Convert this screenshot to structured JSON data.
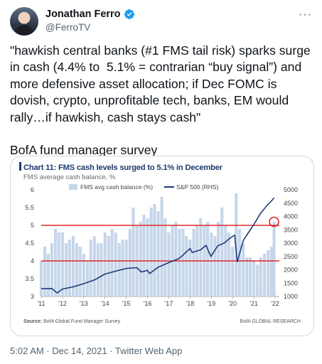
{
  "tweet": {
    "author_name": "Jonathan Ferro",
    "handle": "@FerroTV",
    "more_label": "···",
    "text": "\"hawkish central banks (#1 FMS tail risk) sparks surge in cash (4.4% to  5.1% = contrarian “buy signal”) and more defensive asset allocation; if Dec FOMC is dovish, crypto, unprofitable tech, banks, EM would rally…if hawkish, cash stays cash\"\n\nBofA fund manager survey",
    "timestamp": "5:02 AM · Dec 14, 2021 · Twitter Web App"
  },
  "colors": {
    "verified": "#1d9bf0",
    "bar": "#c6d6ea",
    "line": "#1f3b7a",
    "ref_line": "#e0262b"
  },
  "chart_card": {
    "title": "Chart 11: FMS cash levels surged to 5.1% in December",
    "subtitle": "FMS average cash balance, %",
    "legend_bar": "FMS avg cash balance (%)",
    "legend_line": "S&P 500 (RHS)",
    "source_label": "Source:",
    "source_text": "BofA Global Fund Manager Survey",
    "credit": "BofA GLOBAL RESEARCH"
  },
  "chart_data": {
    "type": "bar",
    "title": "Chart 11: FMS cash levels surged to 5.1% in December",
    "subtitle": "FMS average cash balance, %",
    "x_ticks": [
      "'11",
      "'12",
      "'13",
      "'14",
      "'15",
      "'16",
      "'17",
      "'18",
      "'19",
      "'20",
      "'21",
      "'22"
    ],
    "x_range": [
      2011,
      2022.2
    ],
    "ylim_left": [
      3,
      6
    ],
    "yticks_left": [
      "3",
      "3.5",
      "4",
      "4.5",
      "5",
      "5.5",
      "6"
    ],
    "ylim_right": [
      1000,
      5000
    ],
    "yticks_right": [
      "1000",
      "1500",
      "2000",
      "2500",
      "3000",
      "3500",
      "4000",
      "4500",
      "5000"
    ],
    "reference_lines_left": [
      5.0,
      4.0
    ],
    "highlight": {
      "x": 2021.95,
      "y": 5.1
    },
    "series": [
      {
        "name": "FMS avg cash balance (%)",
        "kind": "bar",
        "axis": "left",
        "x": [
          2011.0,
          2011.17,
          2011.33,
          2011.5,
          2011.67,
          2011.83,
          2012.0,
          2012.17,
          2012.33,
          2012.5,
          2012.67,
          2012.83,
          2013.0,
          2013.17,
          2013.33,
          2013.5,
          2013.67,
          2013.83,
          2014.0,
          2014.17,
          2014.33,
          2014.5,
          2014.67,
          2014.83,
          2015.0,
          2015.17,
          2015.33,
          2015.5,
          2015.67,
          2015.83,
          2016.0,
          2016.17,
          2016.33,
          2016.5,
          2016.67,
          2016.83,
          2017.0,
          2017.17,
          2017.33,
          2017.5,
          2017.67,
          2017.83,
          2018.0,
          2018.17,
          2018.33,
          2018.5,
          2018.67,
          2018.83,
          2019.0,
          2019.17,
          2019.33,
          2019.5,
          2019.67,
          2019.83,
          2020.0,
          2020.17,
          2020.33,
          2020.5,
          2020.67,
          2020.83,
          2021.0,
          2021.17,
          2021.33,
          2021.5,
          2021.67,
          2021.83,
          2021.95
        ],
        "values": [
          4.0,
          4.4,
          4.2,
          4.5,
          4.9,
          4.8,
          4.8,
          4.5,
          4.6,
          4.7,
          4.5,
          4.4,
          4.2,
          4.0,
          4.6,
          4.7,
          4.5,
          4.5,
          4.8,
          4.7,
          4.9,
          4.8,
          4.5,
          4.6,
          4.6,
          4.9,
          5.5,
          5.0,
          5.1,
          5.3,
          5.2,
          5.5,
          5.6,
          5.4,
          5.8,
          5.2,
          4.8,
          5.0,
          5.1,
          4.9,
          4.9,
          4.7,
          4.6,
          4.9,
          5.0,
          5.2,
          5.0,
          5.1,
          4.8,
          4.7,
          5.1,
          5.5,
          5.0,
          4.8,
          4.4,
          5.9,
          4.9,
          4.5,
          4.1,
          4.1,
          4.0,
          3.9,
          4.1,
          4.2,
          4.3,
          4.4,
          5.1
        ]
      },
      {
        "name": "S&P 500 (RHS)",
        "kind": "line",
        "axis": "right",
        "x": [
          2011.0,
          2011.5,
          2011.75,
          2012.0,
          2012.5,
          2013.0,
          2013.5,
          2014.0,
          2014.5,
          2015.0,
          2015.5,
          2015.7,
          2016.0,
          2016.1,
          2016.5,
          2017.0,
          2017.5,
          2018.0,
          2018.1,
          2018.5,
          2018.75,
          2018.98,
          2019.3,
          2019.6,
          2019.9,
          2020.1,
          2020.22,
          2020.5,
          2020.75,
          2021.0,
          2021.3,
          2021.6,
          2021.85,
          2021.95
        ],
        "values": [
          1290,
          1300,
          1130,
          1280,
          1360,
          1480,
          1620,
          1840,
          1950,
          2050,
          2080,
          1920,
          1980,
          1860,
          2100,
          2270,
          2430,
          2800,
          2650,
          2750,
          2920,
          2500,
          2900,
          3000,
          3200,
          3300,
          2300,
          3100,
          3400,
          3700,
          4100,
          4400,
          4600,
          4700
        ]
      }
    ]
  }
}
